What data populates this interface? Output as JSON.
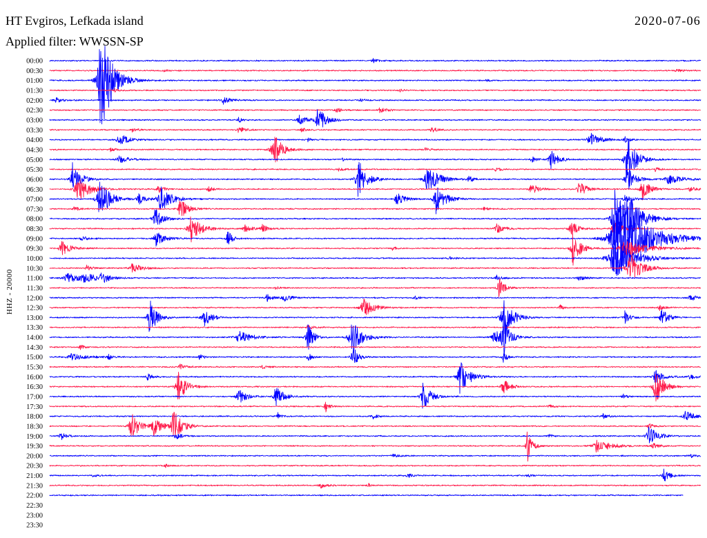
{
  "chart_data": {
    "type": "line",
    "title": "HT Evgiros, Lefkada island",
    "date": "2020-07-06",
    "filter": "Applied filter: WWSSN-SP",
    "ylabel": "HHZ - 20000",
    "x_range_minutes": [
      0,
      30
    ],
    "grid": false,
    "rows": [
      {
        "label": "00:00",
        "color": "#0000ff",
        "events": [
          [
            14.9,
            0.25,
            0.6
          ]
        ]
      },
      {
        "label": "00:30",
        "color": "#ff1a4a",
        "events": [
          [
            5.2,
            0.12,
            0.5
          ],
          [
            28.9,
            0.15,
            0.8
          ]
        ]
      },
      {
        "label": "01:00",
        "color": "#0000ff",
        "events": [
          [
            2.35,
            6.0,
            1.2
          ],
          [
            20.1,
            0.1,
            0.5
          ]
        ]
      },
      {
        "label": "01:30",
        "color": "#ff1a4a",
        "events": [
          [
            16.1,
            0.2,
            0.4
          ],
          [
            3.0,
            0.15,
            0.6
          ]
        ]
      },
      {
        "label": "02:00",
        "color": "#0000ff",
        "events": [
          [
            0.3,
            0.25,
            1.0
          ],
          [
            8.0,
            0.4,
            0.8
          ],
          [
            14.3,
            0.15,
            0.5
          ]
        ]
      },
      {
        "label": "02:30",
        "color": "#ff1a4a",
        "events": [
          [
            13.2,
            0.3,
            0.6
          ],
          [
            15.2,
            0.25,
            0.8
          ]
        ]
      },
      {
        "label": "03:00",
        "color": "#0000ff",
        "events": [
          [
            12.35,
            1.5,
            0.8
          ],
          [
            11.5,
            0.45,
            0.9
          ],
          [
            8.7,
            0.3,
            0.4
          ]
        ]
      },
      {
        "label": "03:30",
        "color": "#ff1a4a",
        "events": [
          [
            8.7,
            0.3,
            0.8
          ],
          [
            17.6,
            0.3,
            0.6
          ],
          [
            11.6,
            0.2,
            0.5
          ],
          [
            3.8,
            0.2,
            0.6
          ]
        ]
      },
      {
        "label": "04:00",
        "color": "#0000ff",
        "events": [
          [
            3.2,
            0.6,
            1.0
          ],
          [
            11.9,
            0.25,
            0.3
          ],
          [
            24.9,
            0.8,
            1.0
          ],
          [
            26.5,
            0.3,
            0.5
          ]
        ]
      },
      {
        "label": "04:30",
        "color": "#ff1a4a",
        "events": [
          [
            10.3,
            1.9,
            0.9
          ],
          [
            17.3,
            0.2,
            0.6
          ],
          [
            2.8,
            0.2,
            0.5
          ]
        ]
      },
      {
        "label": "05:00",
        "color": "#0000ff",
        "events": [
          [
            3.2,
            0.4,
            1.0
          ],
          [
            22.2,
            0.3,
            0.5
          ],
          [
            23.1,
            1.0,
            0.8
          ],
          [
            26.6,
            2.9,
            0.9
          ],
          [
            13.5,
            0.15,
            0.5
          ]
        ]
      },
      {
        "label": "05:30",
        "color": "#ff1a4a",
        "events": [
          [
            13.3,
            0.15,
            0.6
          ],
          [
            20.5,
            0.2,
            0.8
          ],
          [
            27.9,
            0.2,
            0.5
          ]
        ]
      },
      {
        "label": "06:00",
        "color": "#0000ff",
        "events": [
          [
            1.05,
            1.9,
            0.8
          ],
          [
            14.2,
            2.2,
            0.9
          ],
          [
            17.4,
            1.5,
            1.2
          ],
          [
            19.3,
            0.4,
            0.5
          ],
          [
            26.6,
            1.4,
            0.8
          ],
          [
            28.5,
            0.5,
            1.5
          ]
        ]
      },
      {
        "label": "06:30",
        "color": "#ff1a4a",
        "events": [
          [
            1.3,
            1.5,
            1.2
          ],
          [
            5.0,
            0.4,
            0.6
          ],
          [
            7.3,
            0.3,
            0.5
          ],
          [
            22.2,
            0.6,
            0.8
          ],
          [
            24.4,
            0.9,
            0.7
          ],
          [
            27.3,
            1.1,
            0.8
          ],
          [
            29.5,
            0.3,
            0.6
          ]
        ]
      },
      {
        "label": "07:00",
        "color": "#0000ff",
        "events": [
          [
            2.3,
            2.2,
            1.0
          ],
          [
            4.1,
            0.6,
            0.6
          ],
          [
            5.1,
            1.3,
            1.2
          ],
          [
            16.0,
            0.7,
            0.8
          ],
          [
            17.8,
            1.5,
            1.0
          ],
          [
            26.5,
            0.4,
            0.8
          ]
        ]
      },
      {
        "label": "07:30",
        "color": "#ff1a4a",
        "events": [
          [
            6.0,
            1.1,
            0.8
          ],
          [
            1.1,
            0.3,
            0.5
          ],
          [
            20.0,
            0.2,
            0.5
          ]
        ]
      },
      {
        "label": "08:00",
        "color": "#0000ff",
        "events": [
          [
            4.85,
            1.1,
            0.8
          ],
          [
            26.0,
            3.2,
            1.0
          ],
          [
            26.6,
            2.5,
            1.5
          ]
        ]
      },
      {
        "label": "08:30",
        "color": "#ff1a4a",
        "events": [
          [
            6.5,
            1.5,
            1.0
          ],
          [
            9.0,
            0.4,
            0.8
          ],
          [
            9.8,
            0.5,
            0.5
          ],
          [
            20.6,
            0.5,
            0.8
          ],
          [
            24.0,
            1.0,
            0.7
          ],
          [
            26.0,
            0.7,
            1.0
          ]
        ]
      },
      {
        "label": "09:00",
        "color": "#0000ff",
        "events": [
          [
            4.9,
            0.8,
            0.9
          ],
          [
            8.2,
            0.9,
            0.5
          ],
          [
            26.2,
            4.2,
            3.0
          ],
          [
            1.5,
            0.2,
            1.0
          ]
        ]
      },
      {
        "label": "09:30",
        "color": "#ff1a4a",
        "events": [
          [
            0.55,
            0.7,
            1.0
          ],
          [
            24.1,
            1.8,
            0.8
          ],
          [
            15.8,
            0.2,
            0.4
          ],
          [
            26.5,
            0.8,
            2.5
          ]
        ]
      },
      {
        "label": "10:00",
        "color": "#0000ff",
        "events": [
          [
            18.4,
            0.2,
            0.5
          ],
          [
            26.0,
            2.2,
            2.0
          ]
        ]
      },
      {
        "label": "10:30",
        "color": "#ff1a4a",
        "events": [
          [
            1.7,
            0.3,
            0.5
          ],
          [
            3.8,
            0.5,
            1.0
          ],
          [
            26.7,
            1.8,
            1.2
          ]
        ]
      },
      {
        "label": "11:00",
        "color": "#0000ff",
        "events": [
          [
            0.8,
            0.5,
            1.5
          ],
          [
            1.6,
            0.8,
            0.8
          ],
          [
            2.4,
            0.6,
            0.8
          ],
          [
            20.6,
            0.3,
            0.5
          ],
          [
            24.4,
            0.3,
            0.6
          ]
        ]
      },
      {
        "label": "11:30",
        "color": "#ff1a4a",
        "events": [
          [
            20.7,
            1.0,
            0.6
          ],
          [
            10.4,
            0.15,
            0.5
          ]
        ]
      },
      {
        "label": "12:00",
        "color": "#0000ff",
        "events": [
          [
            10.0,
            0.4,
            0.6
          ],
          [
            10.8,
            0.4,
            0.8
          ],
          [
            16.8,
            0.2,
            0.5
          ],
          [
            29.5,
            0.3,
            0.8
          ]
        ]
      },
      {
        "label": "12:30",
        "color": "#ff1a4a",
        "events": [
          [
            14.45,
            1.1,
            1.0
          ],
          [
            23.5,
            0.4,
            0.3
          ],
          [
            28.1,
            0.3,
            0.6
          ]
        ]
      },
      {
        "label": "13:00",
        "color": "#0000ff",
        "events": [
          [
            4.6,
            2.0,
            0.7
          ],
          [
            7.1,
            1.0,
            0.8
          ],
          [
            20.9,
            2.0,
            1.0
          ],
          [
            26.5,
            0.7,
            0.5
          ],
          [
            28.2,
            1.0,
            0.7
          ]
        ]
      },
      {
        "label": "13:30",
        "color": "#ff1a4a",
        "events": [
          [
            11.9,
            0.3,
            0.5
          ]
        ]
      },
      {
        "label": "14:00",
        "color": "#0000ff",
        "events": [
          [
            8.7,
            0.7,
            1.3
          ],
          [
            11.85,
            1.8,
            0.6
          ],
          [
            13.9,
            2.1,
            1.0
          ],
          [
            20.5,
            0.7,
            1.2
          ],
          [
            20.9,
            2.0,
            0.6
          ]
        ]
      },
      {
        "label": "14:30",
        "color": "#ff1a4a",
        "events": [
          [
            1.4,
            0.3,
            0.4
          ]
        ]
      },
      {
        "label": "15:00",
        "color": "#0000ff",
        "events": [
          [
            1.0,
            0.35,
            1.5
          ],
          [
            2.7,
            0.3,
            0.4
          ],
          [
            6.9,
            0.3,
            0.5
          ],
          [
            11.9,
            0.5,
            0.4
          ],
          [
            13.95,
            1.3,
            0.6
          ],
          [
            20.9,
            0.5,
            0.5
          ]
        ]
      },
      {
        "label": "15:30",
        "color": "#ff1a4a",
        "events": [
          [
            6.0,
            0.3,
            0.6
          ],
          [
            9.8,
            0.2,
            0.5
          ]
        ]
      },
      {
        "label": "16:00",
        "color": "#0000ff",
        "events": [
          [
            4.5,
            0.4,
            0.6
          ],
          [
            18.9,
            1.8,
            1.0
          ],
          [
            27.9,
            0.8,
            0.8
          ],
          [
            29.5,
            0.3,
            0.6
          ]
        ]
      },
      {
        "label": "16:30",
        "color": "#ff1a4a",
        "events": [
          [
            5.9,
            1.8,
            0.8
          ],
          [
            20.9,
            0.9,
            0.7
          ],
          [
            27.9,
            1.8,
            0.9
          ]
        ]
      },
      {
        "label": "17:00",
        "color": "#0000ff",
        "events": [
          [
            8.7,
            0.9,
            0.8
          ],
          [
            10.4,
            1.2,
            0.8
          ],
          [
            17.2,
            1.6,
            0.8
          ],
          [
            26.4,
            0.3,
            0.4
          ]
        ]
      },
      {
        "label": "17:30",
        "color": "#ff1a4a",
        "events": [
          [
            12.7,
            0.6,
            0.4
          ],
          [
            23.0,
            0.2,
            0.6
          ]
        ]
      },
      {
        "label": "18:00",
        "color": "#0000ff",
        "events": [
          [
            14.9,
            0.3,
            0.5
          ],
          [
            25.5,
            0.3,
            0.5
          ],
          [
            29.3,
            0.6,
            1.0
          ],
          [
            10.5,
            0.4,
            0.3
          ]
        ]
      },
      {
        "label": "18:30",
        "color": "#ff1a4a",
        "events": [
          [
            3.75,
            1.4,
            0.9
          ],
          [
            4.8,
            1.0,
            0.8
          ],
          [
            5.7,
            1.8,
            0.9
          ],
          [
            27.6,
            0.3,
            0.6
          ]
        ]
      },
      {
        "label": "19:00",
        "color": "#0000ff",
        "events": [
          [
            0.5,
            0.4,
            0.6
          ],
          [
            5.8,
            0.4,
            0.6
          ],
          [
            27.6,
            1.0,
            1.0
          ],
          [
            23.0,
            0.2,
            0.4
          ]
        ]
      },
      {
        "label": "19:30",
        "color": "#ff1a4a",
        "events": [
          [
            22.0,
            1.8,
            0.5
          ],
          [
            25.2,
            0.7,
            1.5
          ],
          [
            27.8,
            0.3,
            0.8
          ]
        ]
      },
      {
        "label": "20:00",
        "color": "#0000ff",
        "events": [
          [
            15.8,
            0.2,
            0.6
          ],
          [
            29.5,
            0.2,
            0.5
          ]
        ]
      },
      {
        "label": "20:30",
        "color": "#ff1a4a",
        "events": [
          [
            5.3,
            0.2,
            0.5
          ]
        ]
      },
      {
        "label": "21:00",
        "color": "#0000ff",
        "events": [
          [
            2.0,
            0.15,
            0.5
          ],
          [
            16.5,
            0.2,
            0.6
          ],
          [
            22.0,
            0.2,
            0.4
          ],
          [
            28.3,
            0.7,
            0.6
          ]
        ]
      },
      {
        "label": "21:30",
        "color": "#ff1a4a",
        "events": [
          [
            12.5,
            0.3,
            0.6
          ],
          [
            14.7,
            0.2,
            0.3
          ]
        ]
      },
      {
        "label": "22:00",
        "color": "#0000ff",
        "end_minute": 29.2,
        "events": [
          [
            5.0,
            0.1,
            0.3
          ]
        ]
      },
      {
        "label": "22:30"
      },
      {
        "label": "23:00"
      },
      {
        "label": "23:30"
      }
    ]
  }
}
